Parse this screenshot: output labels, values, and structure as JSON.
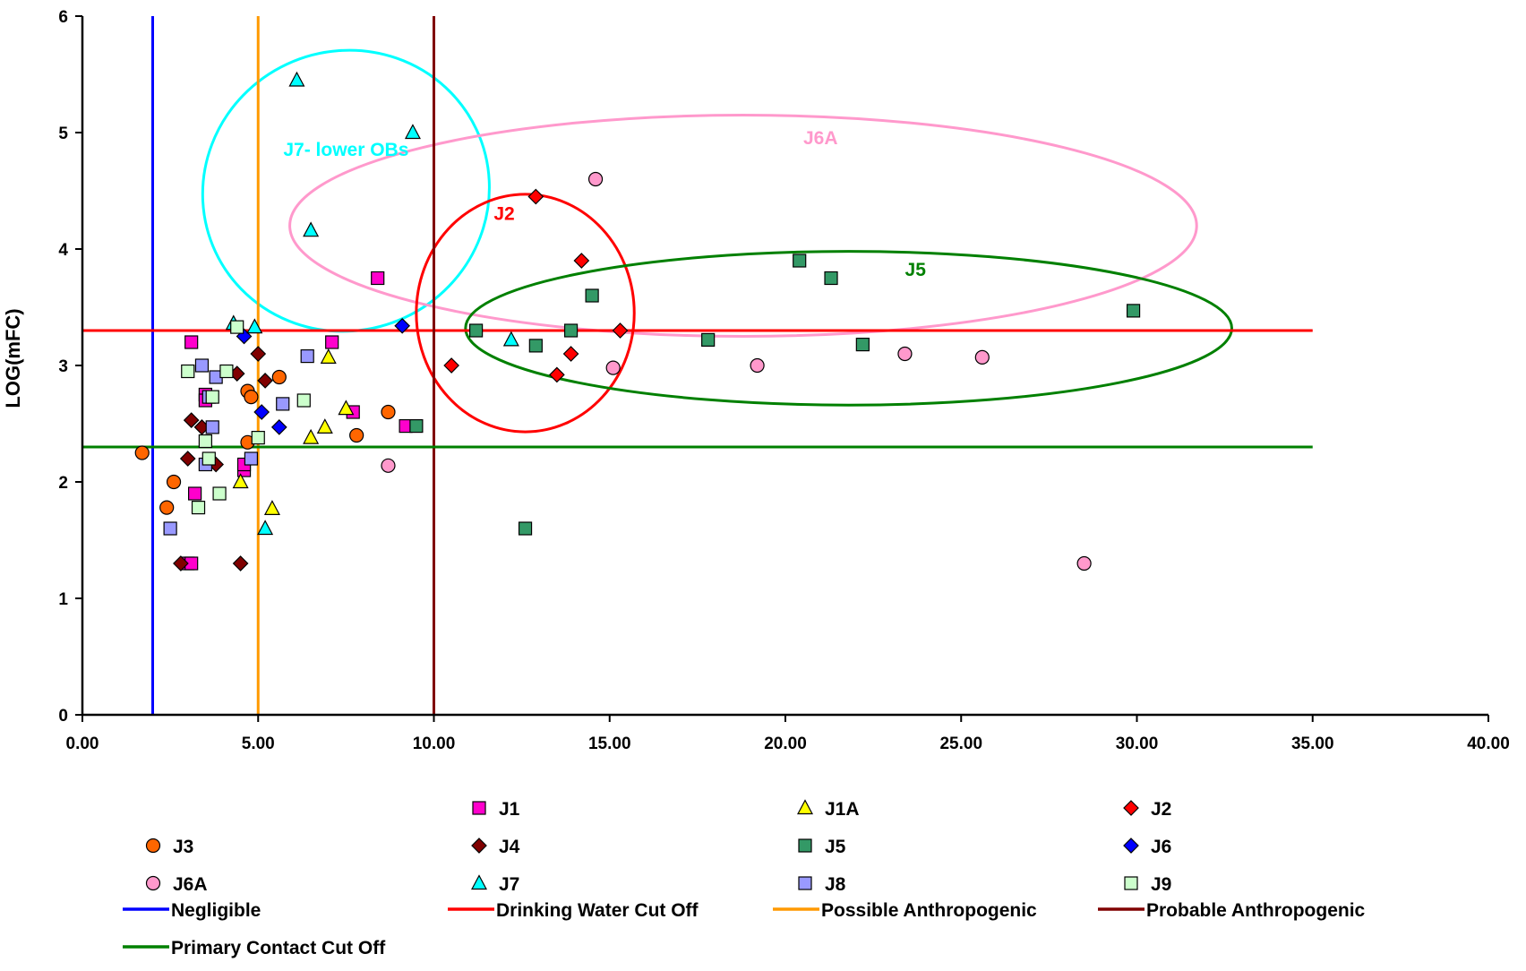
{
  "chart_data": {
    "type": "scatter",
    "title": "",
    "xlabel": "",
    "ylabel": "LOG(mFC)",
    "xlim": [
      0,
      40
    ],
    "ylim": [
      0,
      6
    ],
    "x_ticks": [
      "0.00",
      "5.00",
      "10.00",
      "15.00",
      "20.00",
      "25.00",
      "30.00",
      "35.00",
      "40.00"
    ],
    "y_ticks": [
      "0",
      "1",
      "2",
      "3",
      "4",
      "5",
      "6"
    ],
    "grid": false,
    "legend_position": "bottom",
    "series": [
      {
        "name": "J1",
        "marker": "square",
        "color": "#ff00cc",
        "points": [
          [
            3.1,
            3.2
          ],
          [
            3.5,
            2.75
          ],
          [
            3.5,
            2.7
          ],
          [
            3.0,
            1.3
          ],
          [
            3.1,
            1.3
          ],
          [
            3.2,
            1.9
          ],
          [
            4.6,
            2.1
          ],
          [
            4.6,
            2.15
          ],
          [
            7.1,
            3.2
          ],
          [
            7.7,
            2.6
          ],
          [
            8.4,
            3.75
          ],
          [
            9.2,
            2.48
          ]
        ]
      },
      {
        "name": "J1A",
        "marker": "triangle",
        "color": "#ffff00",
        "points": [
          [
            4.5,
            2.0
          ],
          [
            5.4,
            1.77
          ],
          [
            6.5,
            2.38
          ],
          [
            6.9,
            2.47
          ],
          [
            7.0,
            3.07
          ],
          [
            7.5,
            2.63
          ]
        ]
      },
      {
        "name": "J2",
        "marker": "diamond",
        "color": "#ff0000",
        "points": [
          [
            10.5,
            3.0
          ],
          [
            12.9,
            4.45
          ],
          [
            13.5,
            2.92
          ],
          [
            13.9,
            3.1
          ],
          [
            14.2,
            3.9
          ],
          [
            15.3,
            3.3
          ]
        ]
      },
      {
        "name": "J3",
        "marker": "circle",
        "color": "#ff6600",
        "points": [
          [
            1.7,
            2.25
          ],
          [
            2.4,
            1.78
          ],
          [
            2.6,
            2.0
          ],
          [
            4.7,
            2.34
          ],
          [
            4.7,
            2.78
          ],
          [
            4.8,
            2.73
          ],
          [
            5.6,
            2.9
          ],
          [
            7.8,
            2.4
          ],
          [
            8.7,
            2.6
          ]
        ]
      },
      {
        "name": "J4",
        "marker": "diamond",
        "color": "#800000",
        "points": [
          [
            2.8,
            1.3
          ],
          [
            3.0,
            2.2
          ],
          [
            3.1,
            2.53
          ],
          [
            3.4,
            2.47
          ],
          [
            3.8,
            2.15
          ],
          [
            4.4,
            2.93
          ],
          [
            4.5,
            1.3
          ],
          [
            5.0,
            3.1
          ],
          [
            5.2,
            2.87
          ]
        ]
      },
      {
        "name": "J5",
        "marker": "square",
        "color": "#339966",
        "points": [
          [
            9.5,
            2.48
          ],
          [
            11.2,
            3.3
          ],
          [
            12.6,
            1.6
          ],
          [
            12.9,
            3.17
          ],
          [
            13.9,
            3.3
          ],
          [
            14.5,
            3.6
          ],
          [
            17.8,
            3.22
          ],
          [
            20.4,
            3.9
          ],
          [
            21.3,
            3.75
          ],
          [
            22.2,
            3.18
          ],
          [
            29.9,
            3.47
          ]
        ]
      },
      {
        "name": "J6",
        "marker": "diamond",
        "color": "#0000ff",
        "points": [
          [
            4.6,
            3.25
          ],
          [
            5.1,
            2.6
          ],
          [
            5.6,
            2.47
          ],
          [
            9.1,
            3.34
          ]
        ]
      },
      {
        "name": "J6A",
        "marker": "circle",
        "color": "#ff99cc",
        "points": [
          [
            8.7,
            2.14
          ],
          [
            14.6,
            4.6
          ],
          [
            15.1,
            2.98
          ],
          [
            19.2,
            3.0
          ],
          [
            23.4,
            3.1
          ],
          [
            25.6,
            3.07
          ],
          [
            28.5,
            1.3
          ]
        ]
      },
      {
        "name": "J7",
        "marker": "triangle",
        "color": "#00ffff",
        "points": [
          [
            4.3,
            3.36
          ],
          [
            4.9,
            3.33
          ],
          [
            5.2,
            1.6
          ],
          [
            6.1,
            5.45
          ],
          [
            6.5,
            4.16
          ],
          [
            9.4,
            5.0
          ],
          [
            12.2,
            3.22
          ]
        ]
      },
      {
        "name": "J8",
        "marker": "square",
        "color": "#9999ff",
        "points": [
          [
            2.5,
            1.6
          ],
          [
            3.4,
            3.0
          ],
          [
            3.5,
            2.15
          ],
          [
            3.6,
            2.73
          ],
          [
            3.7,
            2.47
          ],
          [
            3.8,
            2.9
          ],
          [
            4.8,
            2.2
          ],
          [
            5.7,
            2.67
          ],
          [
            6.4,
            3.08
          ]
        ]
      },
      {
        "name": "J9",
        "marker": "square",
        "color": "#ccffcc",
        "points": [
          [
            3.0,
            2.95
          ],
          [
            3.3,
            1.78
          ],
          [
            3.5,
            2.35
          ],
          [
            3.6,
            2.2
          ],
          [
            3.7,
            2.73
          ],
          [
            3.9,
            1.9
          ],
          [
            4.1,
            2.95
          ],
          [
            4.4,
            3.33
          ],
          [
            5.0,
            2.38
          ],
          [
            6.3,
            2.7
          ]
        ]
      }
    ],
    "reference_lines": [
      {
        "name": "Negligible",
        "orientation": "vertical",
        "value": 2,
        "color": "#0000ff"
      },
      {
        "name": "Drinking Water Cut Off",
        "orientation": "horizontal",
        "value": 3.3,
        "color": "#ff0000"
      },
      {
        "name": "Possible Anthropogenic",
        "orientation": "vertical",
        "value": 5,
        "color": "#ff9900"
      },
      {
        "name": "Probable Anthropogenic",
        "orientation": "vertical",
        "value": 10,
        "color": "#800000"
      },
      {
        "name": "Primary Contact Cut Off",
        "orientation": "horizontal",
        "value": 2.3,
        "color": "#008000"
      }
    ],
    "annotations": [
      {
        "label": "J7- lower OBs",
        "color": "#00ffff",
        "ellipse": {
          "cx": 7.5,
          "cy": 4.5,
          "rx": 4.1,
          "ry": 1.2,
          "rotate": -25
        },
        "label_at": [
          7.5,
          4.8
        ]
      },
      {
        "label": "J6A",
        "color": "#ff99cc",
        "ellipse": {
          "cx": 18.8,
          "cy": 4.2,
          "rx": 12.9,
          "ry": 0.95,
          "rotate": 0
        },
        "label_at": [
          21.0,
          4.9
        ]
      },
      {
        "label": "J2",
        "color": "#ff0000",
        "ellipse": {
          "cx": 12.6,
          "cy": 3.45,
          "rx": 3.1,
          "ry": 1.02,
          "rotate": 0
        },
        "label_at": [
          12.0,
          4.25
        ]
      },
      {
        "label": "J5",
        "color": "#008000",
        "ellipse": {
          "cx": 21.8,
          "cy": 3.32,
          "rx": 10.9,
          "ry": 0.66,
          "rotate": 0
        },
        "label_at": [
          23.7,
          3.77
        ]
      }
    ]
  }
}
